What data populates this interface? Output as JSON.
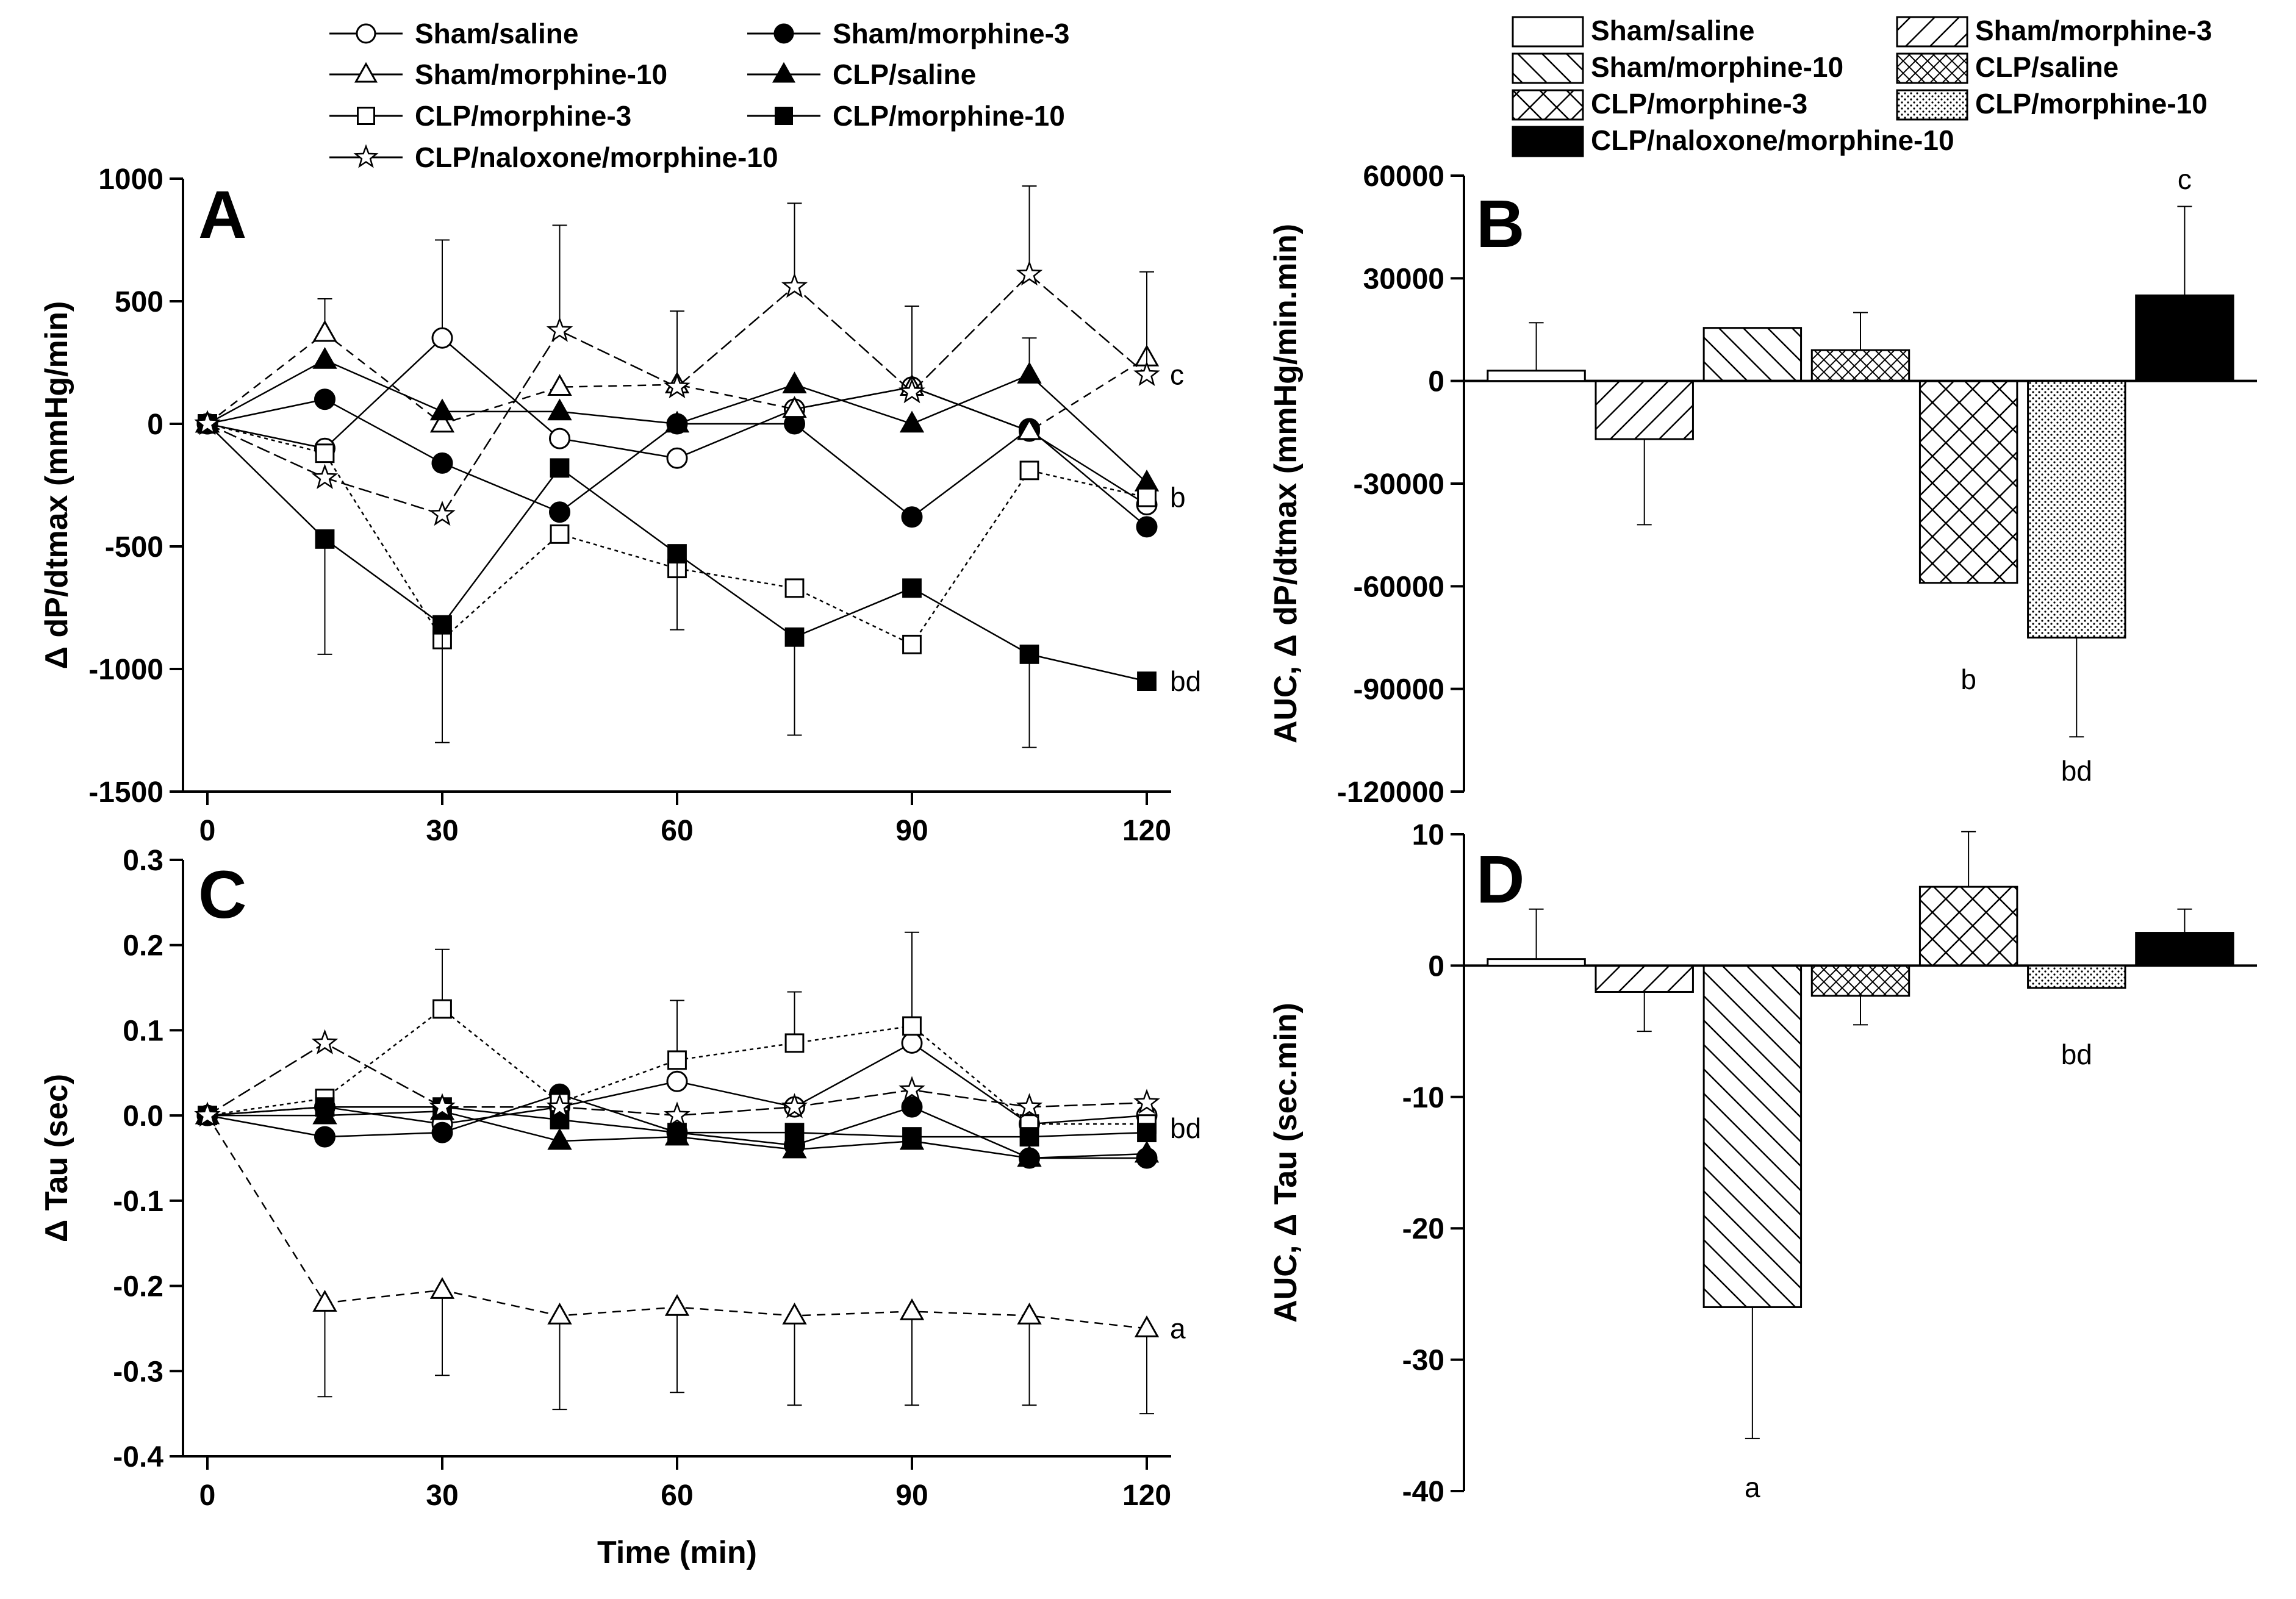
{
  "figure": {
    "line_legend": [
      "Sham/saline",
      "Sham/morphine-3",
      "Sham/morphine-10",
      "CLP/saline",
      "CLP/morphine-3",
      "CLP/morphine-10",
      "CLP/naloxone/morphine-10"
    ],
    "bar_legend": [
      "Sham/saline",
      "Sham/morphine-3",
      "Sham/morphine-10",
      "CLP/saline",
      "CLP/morphine-3",
      "CLP/morphine-10",
      "CLP/naloxone/morphine-10"
    ]
  },
  "chart_data": [
    {
      "panel": "A",
      "type": "line",
      "xlabel": "",
      "ylabel": "Δ dP/dtmax (mmHg/min)",
      "xlim": [
        0,
        120
      ],
      "ylim": [
        -1500,
        1000
      ],
      "xticks": [
        0,
        30,
        60,
        90,
        120
      ],
      "yticks": [
        -1500,
        -1000,
        -500,
        0,
        500,
        1000
      ],
      "x": [
        0,
        15,
        30,
        45,
        60,
        75,
        90,
        105,
        120
      ],
      "series": [
        {
          "name": "Sham/saline",
          "marker": "circle-open",
          "values": [
            0,
            -100,
            350,
            -60,
            -140,
            60,
            150,
            -30,
            -330
          ],
          "err": [
            0,
            0,
            400,
            0,
            0,
            0,
            0,
            0,
            0
          ]
        },
        {
          "name": "Sham/morphine-3",
          "marker": "circle-filled",
          "values": [
            0,
            100,
            -160,
            -360,
            0,
            0,
            -380,
            -20,
            -420
          ],
          "err": [
            0,
            0,
            0,
            0,
            0,
            0,
            0,
            0,
            0
          ]
        },
        {
          "name": "Sham/morphine-10",
          "marker": "triangle-open",
          "values": [
            0,
            370,
            0,
            150,
            160,
            60,
            150,
            -30,
            270
          ],
          "err": [
            0,
            140,
            0,
            0,
            0,
            0,
            0,
            0,
            0
          ]
        },
        {
          "name": "CLP/saline",
          "marker": "triangle-filled",
          "values": [
            0,
            260,
            50,
            50,
            0,
            160,
            0,
            200,
            -240
          ],
          "err": [
            0,
            0,
            0,
            0,
            0,
            0,
            0,
            150,
            0
          ]
        },
        {
          "name": "CLP/morphine-3",
          "marker": "square-open",
          "values": [
            0,
            -120,
            -880,
            -450,
            -590,
            -670,
            -900,
            -190,
            -300
          ],
          "err": [
            0,
            0,
            0,
            0,
            0,
            0,
            0,
            0,
            0
          ]
        },
        {
          "name": "CLP/morphine-10",
          "marker": "square-filled",
          "values": [
            0,
            -470,
            -820,
            -180,
            -530,
            -870,
            -670,
            -940,
            -1050
          ],
          "err": [
            0,
            470,
            480,
            0,
            310,
            400,
            0,
            380,
            0
          ]
        },
        {
          "name": "CLP/naloxone/morphine-10",
          "marker": "star",
          "values": [
            0,
            -220,
            -370,
            380,
            150,
            560,
            130,
            610,
            200
          ],
          "err": [
            0,
            0,
            0,
            430,
            310,
            340,
            350,
            360,
            420
          ]
        }
      ],
      "annotations": [
        {
          "text": "c",
          "x": 120,
          "y": 200
        },
        {
          "text": "b",
          "x": 120,
          "y": -300
        },
        {
          "text": "bd",
          "x": 120,
          "y": -1050
        }
      ]
    },
    {
      "panel": "B",
      "type": "bar",
      "xlabel": "",
      "ylabel": "AUC, Δ dP/dtmax (mmHg/min.min)",
      "ylim": [
        -120000,
        60000
      ],
      "yticks": [
        -120000,
        -90000,
        -60000,
        -30000,
        0,
        30000,
        60000
      ],
      "categories": [
        "Sham/saline",
        "Sham/morphine-3",
        "Sham/morphine-10",
        "CLP/saline",
        "CLP/morphine-3",
        "CLP/morphine-10",
        "CLP/naloxone/morphine-10"
      ],
      "values": [
        3000,
        -17000,
        15500,
        9000,
        -59000,
        -75000,
        25000
      ],
      "err": [
        14000,
        25000,
        0,
        11000,
        0,
        29000,
        26000
      ],
      "annotations": [
        {
          "text": "c",
          "category": 6
        },
        {
          "text": "b",
          "category": 4
        },
        {
          "text": "bd",
          "category": 5
        }
      ]
    },
    {
      "panel": "C",
      "type": "line",
      "xlabel": "Time (min)",
      "ylabel": "Δ Tau (sec)",
      "xlim": [
        0,
        120
      ],
      "ylim": [
        -0.4,
        0.3
      ],
      "xticks": [
        0,
        30,
        60,
        90,
        120
      ],
      "yticks": [
        -0.4,
        -0.3,
        -0.2,
        -0.1,
        0.0,
        0.1,
        0.2,
        0.3
      ],
      "x": [
        0,
        15,
        30,
        45,
        60,
        75,
        90,
        105,
        120
      ],
      "series": [
        {
          "name": "Sham/saline",
          "marker": "circle-open",
          "values": [
            0,
            0.01,
            -0.01,
            0.01,
            0.04,
            0.01,
            0.085,
            -0.01,
            0.0
          ],
          "err": [
            0,
            0,
            0,
            0,
            0,
            0,
            0,
            0,
            0
          ]
        },
        {
          "name": "Sham/morphine-3",
          "marker": "circle-filled",
          "values": [
            0,
            -0.025,
            -0.02,
            0.025,
            -0.02,
            -0.035,
            0.01,
            -0.05,
            -0.05
          ],
          "err": [
            0,
            0,
            0,
            0,
            0,
            0,
            0,
            0,
            0
          ]
        },
        {
          "name": "Sham/morphine-10",
          "marker": "triangle-open",
          "values": [
            0,
            -0.22,
            -0.205,
            -0.235,
            -0.225,
            -0.235,
            -0.23,
            -0.235,
            -0.25
          ],
          "err": [
            0,
            0.11,
            0.1,
            0.11,
            0.1,
            0.105,
            0.11,
            0.105,
            0.1
          ]
        },
        {
          "name": "CLP/saline",
          "marker": "triangle-filled",
          "values": [
            0,
            0.0,
            0.005,
            -0.03,
            -0.025,
            -0.04,
            -0.03,
            -0.05,
            -0.045
          ],
          "err": [
            0,
            0,
            0,
            0,
            0,
            0,
            0,
            0,
            0
          ]
        },
        {
          "name": "CLP/morphine-3",
          "marker": "square-open",
          "values": [
            0,
            0.02,
            0.125,
            0.015,
            0.065,
            0.085,
            0.105,
            -0.01,
            -0.01
          ],
          "err": [
            0,
            0,
            0.07,
            0,
            0.07,
            0.06,
            0.11,
            0,
            0
          ]
        },
        {
          "name": "CLP/morphine-10",
          "marker": "square-filled",
          "values": [
            0,
            0.01,
            0.01,
            -0.005,
            -0.02,
            -0.02,
            -0.025,
            -0.025,
            -0.02
          ],
          "err": [
            0,
            0,
            0,
            0,
            0,
            0,
            0,
            0,
            0
          ]
        },
        {
          "name": "CLP/naloxone/morphine-10",
          "marker": "star",
          "values": [
            0,
            0.085,
            0.01,
            0.01,
            0.0,
            0.01,
            0.03,
            0.01,
            0.015
          ],
          "err": [
            0,
            0,
            0,
            0,
            0,
            0,
            0,
            0,
            0
          ]
        }
      ],
      "annotations": [
        {
          "text": "bd",
          "x": 120,
          "y": -0.015
        },
        {
          "text": "a",
          "x": 120,
          "y": -0.25
        }
      ]
    },
    {
      "panel": "D",
      "type": "bar",
      "xlabel": "",
      "ylabel": "AUC, Δ Tau (sec.min)",
      "ylim": [
        -40,
        10
      ],
      "yticks": [
        -40,
        -30,
        -20,
        -10,
        0,
        10
      ],
      "categories": [
        "Sham/saline",
        "Sham/morphine-3",
        "Sham/morphine-10",
        "CLP/saline",
        "CLP/morphine-3",
        "CLP/morphine-10",
        "CLP/naloxone/morphine-10"
      ],
      "values": [
        0.5,
        -2.0,
        -26.0,
        -2.3,
        6.0,
        -1.7,
        2.5
      ],
      "err": [
        3.8,
        3.0,
        10.0,
        2.2,
        4.2,
        0,
        1.8
      ],
      "annotations": [
        {
          "text": "a",
          "category": 2
        },
        {
          "text": "bd",
          "category": 5
        }
      ]
    }
  ]
}
